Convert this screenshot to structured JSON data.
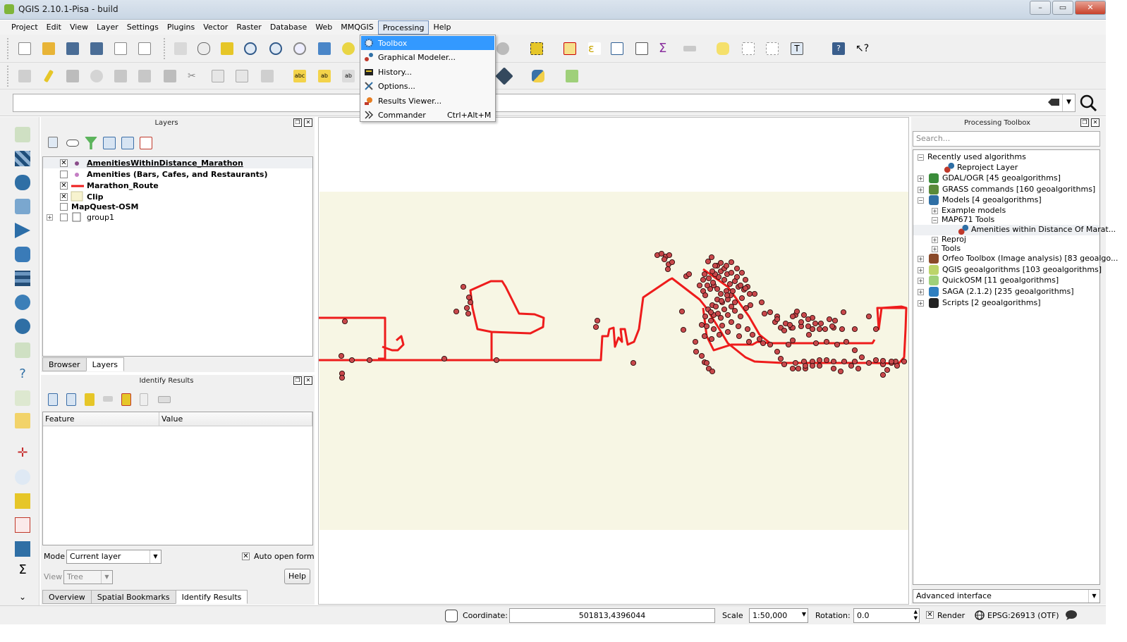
{
  "window": {
    "title": "QGIS 2.10.1-Pisa - build"
  },
  "menubar": [
    "Project",
    "Edit",
    "View",
    "Layer",
    "Settings",
    "Plugins",
    "Vector",
    "Raster",
    "Database",
    "Web",
    "MMQGIS",
    "Processing",
    "Help"
  ],
  "processing_menu": {
    "items": [
      {
        "label": "Toolbox",
        "shortcut": ""
      },
      {
        "label": "Graphical Modeler...",
        "shortcut": ""
      },
      {
        "label": "History...",
        "shortcut": ""
      },
      {
        "label": "Options...",
        "shortcut": ""
      },
      {
        "label": "Results Viewer...",
        "shortcut": ""
      },
      {
        "label": "Commander",
        "shortcut": "Ctrl+Alt+M"
      }
    ]
  },
  "layers_panel": {
    "title": "Layers",
    "layers": [
      {
        "name": "AmenitiesWithinDistance_Marathon",
        "checked": true,
        "symbol": "point"
      },
      {
        "name": "Amenities (Bars, Cafes, and Restaurants)",
        "checked": false,
        "symbol": "point"
      },
      {
        "name": "Marathon_Route",
        "checked": true,
        "symbol": "line"
      },
      {
        "name": "Clip",
        "checked": true,
        "symbol": "fill"
      },
      {
        "name": "MapQuest-OSM",
        "checked": false,
        "symbol": "none"
      },
      {
        "name": "group1",
        "checked": false,
        "symbol": "group"
      }
    ],
    "tabs": [
      "Browser",
      "Layers"
    ]
  },
  "identify_panel": {
    "title": "Identify Results",
    "columns": [
      "Feature",
      "Value"
    ],
    "mode_label": "Mode",
    "mode_value": "Current layer",
    "auto_open_label": "Auto open form",
    "view_label": "View",
    "view_value": "Tree",
    "help_label": "Help",
    "tabs": [
      "Overview",
      "Spatial Bookmarks",
      "Identify Results"
    ]
  },
  "processing_toolbox": {
    "title": "Processing Toolbox",
    "search_placeholder": "Search...",
    "items": [
      {
        "label": "Recently used algorithms",
        "level": 0,
        "expander": "−"
      },
      {
        "label": "Reproject Layer",
        "level": 2,
        "expander": ""
      },
      {
        "label": "GDAL/OGR [45 geoalgorithms]",
        "level": 0,
        "expander": "+"
      },
      {
        "label": "GRASS commands [160 geoalgorithms]",
        "level": 0,
        "expander": "+"
      },
      {
        "label": "Models [4 geoalgorithms]",
        "level": 0,
        "expander": "−"
      },
      {
        "label": "Example models",
        "level": 1,
        "expander": "+"
      },
      {
        "label": "MAP671 Tools",
        "level": 1,
        "expander": "−"
      },
      {
        "label": "Amenities within Distance Of Marat...",
        "level": 2,
        "expander": ""
      },
      {
        "label": "Reproj",
        "level": 1,
        "expander": "+"
      },
      {
        "label": "Tools",
        "level": 1,
        "expander": "+"
      },
      {
        "label": "Orfeo Toolbox (Image analysis) [83 geoalgo...",
        "level": 0,
        "expander": "+"
      },
      {
        "label": "QGIS geoalgorithms [103 geoalgorithms]",
        "level": 0,
        "expander": "+"
      },
      {
        "label": "QuickOSM [11 geoalgorithms]",
        "level": 0,
        "expander": "+"
      },
      {
        "label": "SAGA (2.1.2) [235 geoalgorithms]",
        "level": 0,
        "expander": "+"
      },
      {
        "label": "Scripts [2 geoalgorithms]",
        "level": 0,
        "expander": "+"
      }
    ],
    "interface_mode": "Advanced interface"
  },
  "statusbar": {
    "coordinate_label": "Coordinate:",
    "coordinate_value": "501813,4396044",
    "scale_label": "Scale",
    "scale_value": "1:50,000",
    "rotation_label": "Rotation:",
    "rotation_value": "0.0",
    "render_label": "Render",
    "crs": "EPSG:26913 (OTF)"
  },
  "colors": {
    "route": "#ee1c1c",
    "points": "#c8484b",
    "clip_fill": "#f7f6e4",
    "menu_highlight": "#3399ff"
  }
}
